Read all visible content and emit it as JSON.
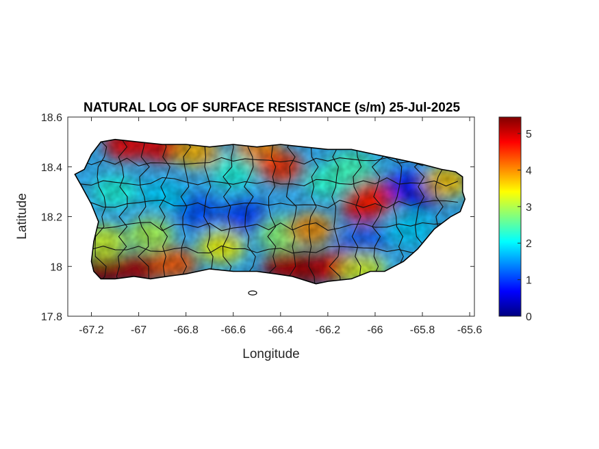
{
  "chart_data": {
    "type": "heatmap",
    "title": "NATURAL LOG OF SURFACE RESISTANCE (s/m) 25-Jul-2025",
    "xlabel": "Longitude",
    "ylabel": "Latitude",
    "xlim": [
      -67.3,
      -65.58
    ],
    "ylim": [
      17.8,
      18.6
    ],
    "xticks": [
      -67.2,
      -67,
      -66.8,
      -66.6,
      -66.4,
      -66.2,
      -66,
      -65.8,
      -65.6
    ],
    "yticks": [
      17.8,
      18,
      18.2,
      18.4,
      18.6
    ],
    "colorbar": {
      "range": [
        0,
        5.45
      ],
      "ticks": [
        0,
        1,
        2,
        3,
        4,
        5
      ],
      "colormap": "jet"
    },
    "island_outline": [
      [
        -67.27,
        18.37
      ],
      [
        -67.23,
        18.39
      ],
      [
        -67.2,
        18.45
      ],
      [
        -67.16,
        18.5
      ],
      [
        -67.1,
        18.51
      ],
      [
        -67.0,
        18.5
      ],
      [
        -66.9,
        18.49
      ],
      [
        -66.8,
        18.49
      ],
      [
        -66.7,
        18.48
      ],
      [
        -66.6,
        18.49
      ],
      [
        -66.5,
        18.48
      ],
      [
        -66.4,
        18.49
      ],
      [
        -66.3,
        18.48
      ],
      [
        -66.2,
        18.47
      ],
      [
        -66.1,
        18.47
      ],
      [
        -66.0,
        18.45
      ],
      [
        -65.9,
        18.43
      ],
      [
        -65.8,
        18.41
      ],
      [
        -65.72,
        18.39
      ],
      [
        -65.66,
        18.38
      ],
      [
        -65.63,
        18.36
      ],
      [
        -65.63,
        18.3
      ],
      [
        -65.62,
        18.27
      ],
      [
        -65.64,
        18.22
      ],
      [
        -65.68,
        18.2
      ],
      [
        -65.75,
        18.15
      ],
      [
        -65.82,
        18.07
      ],
      [
        -65.88,
        18.02
      ],
      [
        -65.96,
        17.98
      ],
      [
        -66.02,
        17.98
      ],
      [
        -66.1,
        17.95
      ],
      [
        -66.2,
        17.94
      ],
      [
        -66.25,
        17.93
      ],
      [
        -66.35,
        17.96
      ],
      [
        -66.42,
        17.97
      ],
      [
        -66.5,
        17.98
      ],
      [
        -66.6,
        17.98
      ],
      [
        -66.7,
        17.99
      ],
      [
        -66.8,
        17.97
      ],
      [
        -66.88,
        17.96
      ],
      [
        -66.95,
        17.95
      ],
      [
        -67.02,
        17.96
      ],
      [
        -67.1,
        17.95
      ],
      [
        -67.16,
        17.95
      ],
      [
        -67.19,
        17.98
      ],
      [
        -67.2,
        18.02
      ],
      [
        -67.19,
        18.1
      ],
      [
        -67.17,
        18.18
      ],
      [
        -67.2,
        18.25
      ],
      [
        -67.24,
        18.32
      ],
      [
        -67.27,
        18.37
      ]
    ],
    "value_field": [
      {
        "lon": -67.15,
        "lat": 17.98,
        "value": 5.4
      },
      {
        "lon": -67.0,
        "lat": 17.99,
        "value": 5.2
      },
      {
        "lon": -66.85,
        "lat": 18.01,
        "value": 4.3
      },
      {
        "lon": -67.05,
        "lat": 18.49,
        "value": 4.8
      },
      {
        "lon": -66.9,
        "lat": 18.48,
        "value": 4.9
      },
      {
        "lon": -66.75,
        "lat": 18.46,
        "value": 3.8
      },
      {
        "lon": -66.5,
        "lat": 18.47,
        "value": 4.0
      },
      {
        "lon": -66.4,
        "lat": 18.4,
        "value": 4.5
      },
      {
        "lon": -66.28,
        "lat": 17.99,
        "value": 5.4
      },
      {
        "lon": -66.38,
        "lat": 18.0,
        "value": 5.2
      },
      {
        "lon": -66.15,
        "lat": 18.0,
        "value": 4.9
      },
      {
        "lon": -66.05,
        "lat": 18.24,
        "value": 4.9
      },
      {
        "lon": -66.0,
        "lat": 18.28,
        "value": 4.6
      },
      {
        "lon": -65.8,
        "lat": 18.29,
        "value": 0.2
      },
      {
        "lon": -65.85,
        "lat": 18.32,
        "value": 0.8
      },
      {
        "lon": -66.75,
        "lat": 18.22,
        "value": 1.1
      },
      {
        "lon": -66.55,
        "lat": 18.2,
        "value": 1.0
      },
      {
        "lon": -66.05,
        "lat": 18.1,
        "value": 1.2
      },
      {
        "lon": -66.9,
        "lat": 18.28,
        "value": 1.8
      },
      {
        "lon": -67.1,
        "lat": 18.3,
        "value": 2.2
      },
      {
        "lon": -66.2,
        "lat": 18.34,
        "value": 2.3
      },
      {
        "lon": -66.1,
        "lat": 18.4,
        "value": 2.4
      },
      {
        "lon": -65.85,
        "lat": 18.15,
        "value": 1.8
      },
      {
        "lon": -66.6,
        "lat": 18.38,
        "value": 2.2
      },
      {
        "lon": -66.95,
        "lat": 18.13,
        "value": 3.0
      },
      {
        "lon": -66.65,
        "lat": 18.08,
        "value": 3.4
      },
      {
        "lon": -66.4,
        "lat": 18.13,
        "value": 2.8
      },
      {
        "lon": -67.15,
        "lat": 18.1,
        "value": 3.2
      },
      {
        "lon": -65.7,
        "lat": 18.34,
        "value": 3.7
      },
      {
        "lon": -66.27,
        "lat": 18.15,
        "value": 4.0
      },
      {
        "lon": -66.05,
        "lat": 17.99,
        "value": 3.2
      }
    ]
  }
}
